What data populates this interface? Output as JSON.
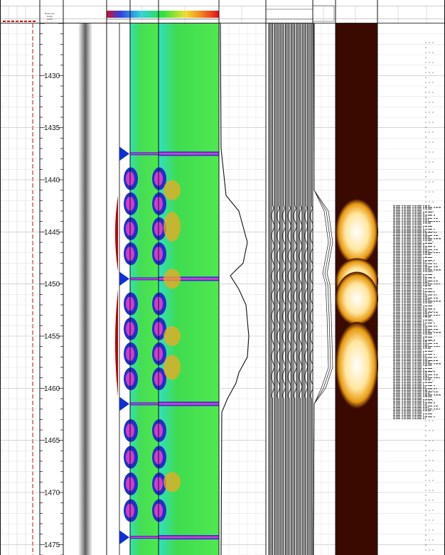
{
  "header": {
    "depth_track_title": "Reference",
    "depth_track_subtitle": "Depth",
    "depth_track_unit": "1/200"
  },
  "left_glyph": ")",
  "chart_data": {
    "type": "well-log",
    "depth_axis": {
      "range": [
        1425,
        1476
      ],
      "labels": [
        1430,
        1435,
        1440,
        1445,
        1450,
        1455,
        1460,
        1465,
        1470,
        1475
      ]
    },
    "interfaces": [
      1437.5,
      1449.5,
      1461.5,
      1474.3
    ],
    "annular_fill_zones": [
      [
        1441.5,
        1448.8
      ],
      [
        1450.5,
        1460.8
      ]
    ],
    "variable_density_span": [
      1442.5,
      1463
    ],
    "colors": {
      "map_green": "#3ddc3d",
      "map_cyan": "#2ee8c4",
      "map_blue": "#2030c8",
      "map_magenta": "#d23cd2",
      "map_orange": "#f2a820",
      "dark_track": "#3a0a00",
      "amber_zone": "#f5b000",
      "red_curve": "#b00000",
      "blue_peak": "#1030d0"
    }
  }
}
